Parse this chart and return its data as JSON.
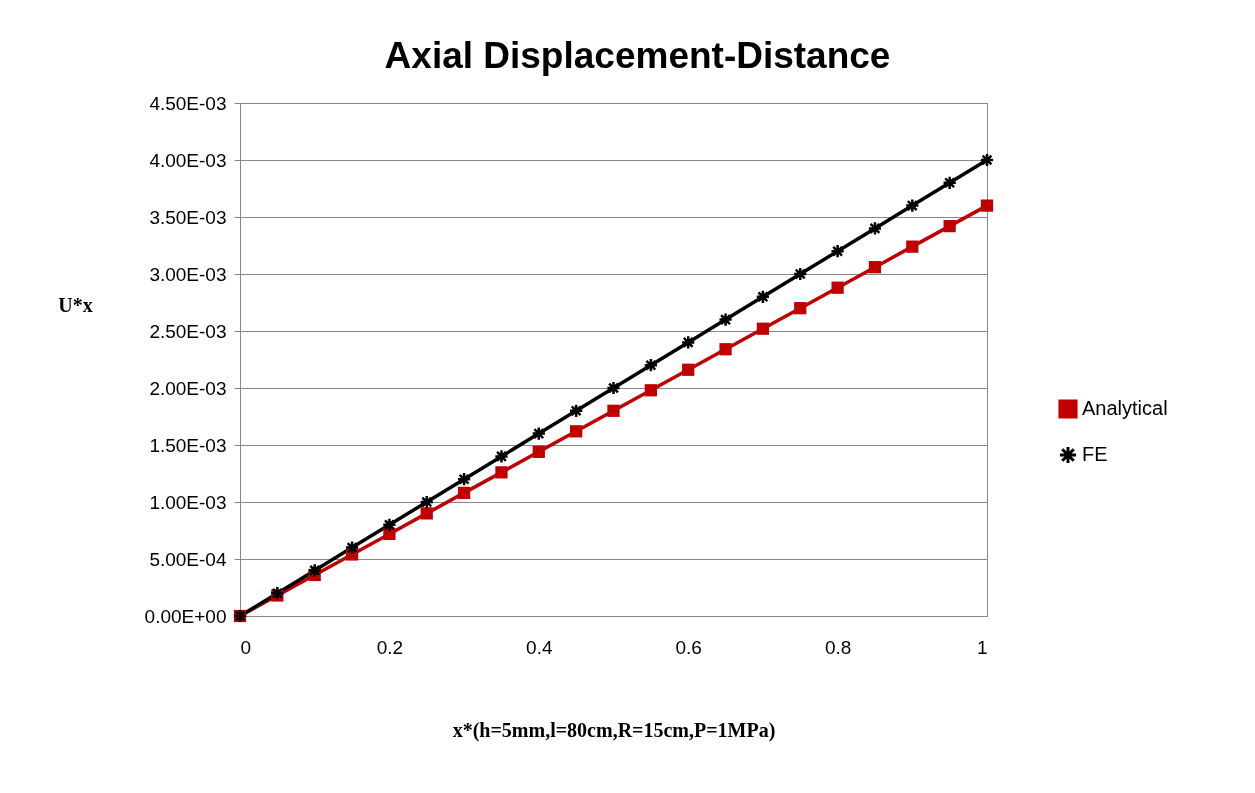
{
  "chart_data": {
    "type": "line",
    "title": "Axial Displacement-Distance",
    "xlabel": "x*(h=5mm,l=80cm,R=15cm,P=1MPa)",
    "ylabel": "U*x",
    "x": [
      0,
      0.05,
      0.1,
      0.15,
      0.2,
      0.25,
      0.3,
      0.35,
      0.4,
      0.45,
      0.5,
      0.55,
      0.6,
      0.65,
      0.7,
      0.75,
      0.8,
      0.85,
      0.9,
      0.95,
      1
    ],
    "series": [
      {
        "name": "Analytical",
        "color": "#c00000",
        "marker": "square",
        "values": [
          0,
          0.00018,
          0.00036,
          0.00054,
          0.00072,
          0.0009,
          0.00108,
          0.00126,
          0.00144,
          0.00162,
          0.0018,
          0.00198,
          0.00216,
          0.00234,
          0.00252,
          0.0027,
          0.00288,
          0.00306,
          0.00324,
          0.00342,
          0.0036
        ]
      },
      {
        "name": "FE",
        "color": "#000000",
        "marker": "cross",
        "values": [
          0,
          0.0002,
          0.0004,
          0.0006,
          0.0008,
          0.001,
          0.0012,
          0.0014,
          0.0016,
          0.0018,
          0.002,
          0.0022,
          0.0024,
          0.0026,
          0.0028,
          0.003,
          0.0032,
          0.0034,
          0.0036,
          0.0038,
          0.004
        ]
      }
    ],
    "xlim": [
      0,
      1
    ],
    "xticks": [
      0,
      0.2,
      0.4,
      0.6,
      0.8,
      1
    ],
    "ylim": [
      0,
      0.0045
    ],
    "yticks": [
      {
        "value": 0,
        "label": "0.00E+00"
      },
      {
        "value": 0.0005,
        "label": "5.00E-04"
      },
      {
        "value": 0.001,
        "label": "1.00E-03"
      },
      {
        "value": 0.0015,
        "label": "1.50E-03"
      },
      {
        "value": 0.002,
        "label": "2.00E-03"
      },
      {
        "value": 0.0025,
        "label": "2.50E-03"
      },
      {
        "value": 0.003,
        "label": "3.00E-03"
      },
      {
        "value": 0.0035,
        "label": "3.50E-03"
      },
      {
        "value": 0.004,
        "label": "4.00E-03"
      },
      {
        "value": 0.0045,
        "label": "4.50E-03"
      }
    ],
    "grid": "y",
    "legend": "right",
    "line_style": "solid"
  }
}
